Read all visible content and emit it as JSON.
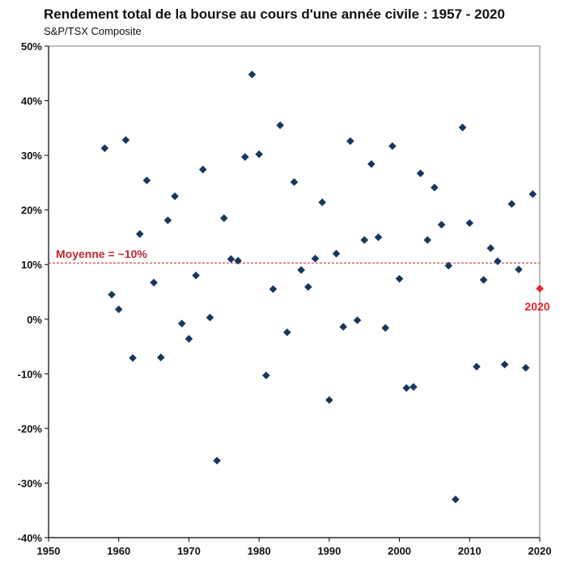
{
  "chart_data": {
    "type": "scatter",
    "title": "Rendement total de la bourse au cours d'une année civile : 1957 - 2020",
    "subtitle": "S&P/TSX Composite",
    "xlabel": "",
    "ylabel": "",
    "xlim": [
      1950,
      2020
    ],
    "ylim": [
      -40,
      50
    ],
    "x_ticks": [
      1950,
      1960,
      1970,
      1980,
      1990,
      2000,
      2010,
      2020
    ],
    "y_ticks": [
      -40,
      -30,
      -20,
      -10,
      0,
      10,
      20,
      30,
      40,
      50
    ],
    "y_tick_labels": [
      "-40%",
      "-30%",
      "-20%",
      "-10%",
      "0%",
      "10%",
      "20%",
      "30%",
      "40%",
      "50%"
    ],
    "grid": false,
    "series": [
      {
        "color": "#17375e",
        "marker": "diamond",
        "points": [
          {
            "x": 1958,
            "y": 31.3
          },
          {
            "x": 1959,
            "y": 4.5
          },
          {
            "x": 1960,
            "y": 1.8
          },
          {
            "x": 1961,
            "y": 32.8
          },
          {
            "x": 1962,
            "y": -7.1
          },
          {
            "x": 1963,
            "y": 15.6
          },
          {
            "x": 1964,
            "y": 25.4
          },
          {
            "x": 1965,
            "y": 6.7
          },
          {
            "x": 1966,
            "y": -7.0
          },
          {
            "x": 1967,
            "y": 18.1
          },
          {
            "x": 1968,
            "y": 22.5
          },
          {
            "x": 1969,
            "y": -0.8
          },
          {
            "x": 1970,
            "y": -3.6
          },
          {
            "x": 1971,
            "y": 8.0
          },
          {
            "x": 1972,
            "y": 27.4
          },
          {
            "x": 1973,
            "y": 0.3
          },
          {
            "x": 1974,
            "y": -25.9
          },
          {
            "x": 1975,
            "y": 18.5
          },
          {
            "x": 1976,
            "y": 11.0
          },
          {
            "x": 1977,
            "y": 10.7
          },
          {
            "x": 1978,
            "y": 29.7
          },
          {
            "x": 1979,
            "y": 44.8
          },
          {
            "x": 1980,
            "y": 30.2
          },
          {
            "x": 1981,
            "y": -10.3
          },
          {
            "x": 1982,
            "y": 5.5
          },
          {
            "x": 1983,
            "y": 35.5
          },
          {
            "x": 1984,
            "y": -2.4
          },
          {
            "x": 1985,
            "y": 25.1
          },
          {
            "x": 1986,
            "y": 9.0
          },
          {
            "x": 1987,
            "y": 5.9
          },
          {
            "x": 1988,
            "y": 11.1
          },
          {
            "x": 1989,
            "y": 21.4
          },
          {
            "x": 1990,
            "y": -14.8
          },
          {
            "x": 1991,
            "y": 12.0
          },
          {
            "x": 1992,
            "y": -1.4
          },
          {
            "x": 1993,
            "y": 32.6
          },
          {
            "x": 1994,
            "y": -0.2
          },
          {
            "x": 1995,
            "y": 14.5
          },
          {
            "x": 1996,
            "y": 28.4
          },
          {
            "x": 1997,
            "y": 15.0
          },
          {
            "x": 1998,
            "y": -1.6
          },
          {
            "x": 1999,
            "y": 31.7
          },
          {
            "x": 2000,
            "y": 7.4
          },
          {
            "x": 2001,
            "y": -12.6
          },
          {
            "x": 2002,
            "y": -12.4
          },
          {
            "x": 2003,
            "y": 26.7
          },
          {
            "x": 2004,
            "y": 14.5
          },
          {
            "x": 2005,
            "y": 24.1
          },
          {
            "x": 2006,
            "y": 17.3
          },
          {
            "x": 2007,
            "y": 9.8
          },
          {
            "x": 2008,
            "y": -33.0
          },
          {
            "x": 2009,
            "y": 35.1
          },
          {
            "x": 2010,
            "y": 17.6
          },
          {
            "x": 2011,
            "y": -8.7
          },
          {
            "x": 2012,
            "y": 7.2
          },
          {
            "x": 2013,
            "y": 13.0
          },
          {
            "x": 2014,
            "y": 10.6
          },
          {
            "x": 2015,
            "y": -8.3
          },
          {
            "x": 2016,
            "y": 21.1
          },
          {
            "x": 2017,
            "y": 9.1
          },
          {
            "x": 2018,
            "y": -8.9
          },
          {
            "x": 2019,
            "y": 22.9
          }
        ]
      }
    ],
    "highlight": {
      "x": 2020,
      "y": 5.6,
      "label": "2020",
      "color": "#e8232a"
    },
    "reference_line": {
      "y": 10.3,
      "label": "Moyenne = ~10%",
      "color": "#c0262d",
      "style": "dashed"
    }
  }
}
